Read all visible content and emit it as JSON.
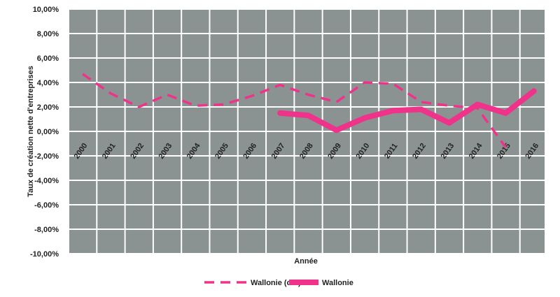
{
  "chart_data": {
    "type": "line",
    "xlabel": "Année",
    "ylabel": "Taux de création nette d'entreprises",
    "categories": [
      "2000",
      "2001",
      "2002",
      "2003",
      "2004",
      "2005",
      "2006",
      "2007",
      "2008",
      "2009",
      "2010",
      "2011",
      "2012",
      "2013",
      "2014",
      "2015",
      "2016"
    ],
    "y_ticks": [
      "10,00%",
      "8,00%",
      "6,00%",
      "4,00%",
      "2,00%",
      "0,00%",
      "-2,00%",
      "-4,00%",
      "-6,00%",
      "-8,00%",
      "-10,00%"
    ],
    "ylim": [
      -10,
      10
    ],
    "grid": true,
    "legend_position": "bottom",
    "series": [
      {
        "name": "Wallonie (old)",
        "style": "dashed",
        "color": "#f0338a",
        "values": [
          4.7,
          3.1,
          2.0,
          3.0,
          2.1,
          2.2,
          2.9,
          3.8,
          3.0,
          2.4,
          4.0,
          3.9,
          2.4,
          2.1,
          1.9,
          -1.3,
          null
        ]
      },
      {
        "name": "Wallonie",
        "style": "solid",
        "color": "#f0338a",
        "values": [
          null,
          null,
          null,
          null,
          null,
          null,
          null,
          1.5,
          1.3,
          0.1,
          1.1,
          1.7,
          1.8,
          0.7,
          2.2,
          1.5,
          3.3
        ]
      }
    ]
  },
  "colors": {
    "plot_background": "#8a9391",
    "grid": "#ffffff",
    "series": "#f0338a"
  }
}
